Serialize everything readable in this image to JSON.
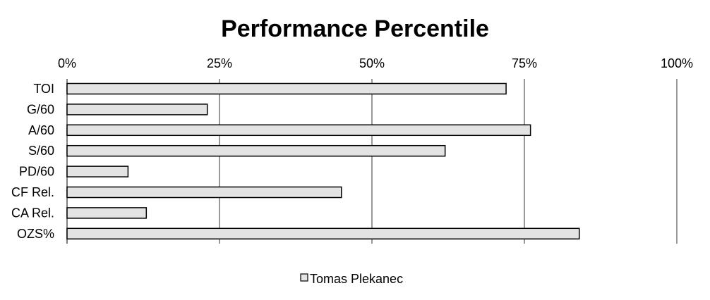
{
  "chart_data": {
    "type": "bar",
    "orientation": "horizontal",
    "title": "Performance Percentile",
    "categories": [
      "TOI",
      "G/60",
      "A/60",
      "S/60",
      "PD/60",
      "CF Rel.",
      "CA Rel.",
      "OZS%"
    ],
    "series": [
      {
        "name": "Tomas Plekanec",
        "values": [
          72,
          23,
          76,
          62,
          10,
          45,
          13,
          84
        ]
      }
    ],
    "x_ticks": [
      "0%",
      "25%",
      "50%",
      "75%",
      "100%"
    ],
    "xlim": [
      0,
      100
    ],
    "grid": true,
    "legend_position": "bottom",
    "bar_fill": "#e3e3e3",
    "bar_stroke": "#000000",
    "grid_color": "#999999"
  }
}
